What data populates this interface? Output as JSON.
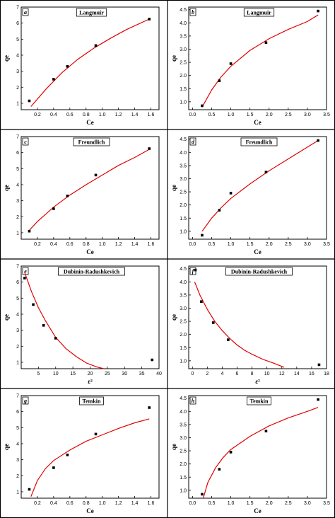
{
  "chart_data": [
    {
      "panel": "a",
      "type": "scatter",
      "title": "Langmuir",
      "xlabel": "Ce",
      "ylabel": "qe",
      "xlim": [
        0.0,
        1.7
      ],
      "ylim": [
        0.6,
        7.0
      ],
      "xticks": [
        0.2,
        0.4,
        0.6,
        0.8,
        1.0,
        1.2,
        1.4,
        1.6
      ],
      "yticks": [
        1,
        2,
        3,
        4,
        5,
        6,
        7
      ],
      "points": [
        [
          0.1,
          1.15
        ],
        [
          0.4,
          2.5
        ],
        [
          0.57,
          3.3
        ],
        [
          0.92,
          4.6
        ],
        [
          1.58,
          6.25
        ]
      ],
      "fit": {
        "color": "#e00000",
        "values": [
          [
            0.12,
            0.8
          ],
          [
            0.3,
            1.85
          ],
          [
            0.5,
            2.9
          ],
          [
            0.7,
            3.75
          ],
          [
            0.9,
            4.45
          ],
          [
            1.1,
            5.05
          ],
          [
            1.3,
            5.6
          ],
          [
            1.58,
            6.25
          ]
        ]
      }
    },
    {
      "panel": "b",
      "type": "scatter",
      "title": "Langmuir",
      "xlabel": "Ce",
      "ylabel": "qe",
      "xlim": [
        -0.1,
        3.5
      ],
      "ylim": [
        0.7,
        4.6
      ],
      "xticks": [
        0.0,
        0.5,
        1.0,
        1.5,
        2.0,
        2.5,
        3.0,
        3.5
      ],
      "yticks": [
        1.0,
        1.5,
        2.0,
        2.5,
        3.0,
        3.5,
        4.0,
        4.5
      ],
      "points": [
        [
          0.25,
          0.85
        ],
        [
          0.7,
          1.8
        ],
        [
          1.0,
          2.45
        ],
        [
          1.92,
          3.25
        ],
        [
          3.28,
          4.45
        ]
      ],
      "fit": {
        "color": "#e00000",
        "values": [
          [
            0.25,
            0.8
          ],
          [
            0.5,
            1.45
          ],
          [
            0.75,
            1.95
          ],
          [
            1.0,
            2.35
          ],
          [
            1.5,
            2.95
          ],
          [
            2.0,
            3.4
          ],
          [
            2.5,
            3.75
          ],
          [
            3.0,
            4.05
          ],
          [
            3.28,
            4.3
          ]
        ]
      }
    },
    {
      "panel": "c",
      "type": "scatter",
      "title": "Freundlich",
      "xlabel": "Ce",
      "ylabel": "qe",
      "xlim": [
        0.0,
        1.7
      ],
      "ylim": [
        0.6,
        7.0
      ],
      "xticks": [
        0.2,
        0.4,
        0.6,
        0.8,
        1.0,
        1.2,
        1.4,
        1.6
      ],
      "yticks": [
        1,
        2,
        3,
        4,
        5,
        6,
        7
      ],
      "points": [
        [
          0.1,
          1.1
        ],
        [
          0.4,
          2.5
        ],
        [
          0.57,
          3.3
        ],
        [
          0.92,
          4.6
        ],
        [
          1.58,
          6.25
        ]
      ],
      "fit": {
        "color": "#e00000",
        "values": [
          [
            0.1,
            1.15
          ],
          [
            0.2,
            1.7
          ],
          [
            0.4,
            2.6
          ],
          [
            0.6,
            3.35
          ],
          [
            0.8,
            4.0
          ],
          [
            1.0,
            4.6
          ],
          [
            1.2,
            5.2
          ],
          [
            1.4,
            5.7
          ],
          [
            1.58,
            6.2
          ]
        ]
      }
    },
    {
      "panel": "d",
      "type": "scatter",
      "title": "Freundlich",
      "xlabel": "Ce",
      "ylabel": "qe",
      "xlim": [
        -0.1,
        3.5
      ],
      "ylim": [
        0.7,
        4.6
      ],
      "xticks": [
        0.0,
        0.5,
        1.0,
        1.5,
        2.0,
        2.5,
        3.0,
        3.5
      ],
      "yticks": [
        1.0,
        1.5,
        2.0,
        2.5,
        3.0,
        3.5,
        4.0,
        4.5
      ],
      "points": [
        [
          0.25,
          0.85
        ],
        [
          0.7,
          1.8
        ],
        [
          1.0,
          2.45
        ],
        [
          1.92,
          3.25
        ],
        [
          3.28,
          4.45
        ]
      ],
      "fit": {
        "color": "#e00000",
        "values": [
          [
            0.25,
            1.0
          ],
          [
            0.5,
            1.5
          ],
          [
            0.75,
            1.9
          ],
          [
            1.0,
            2.25
          ],
          [
            1.5,
            2.8
          ],
          [
            2.0,
            3.3
          ],
          [
            2.5,
            3.75
          ],
          [
            3.0,
            4.2
          ],
          [
            3.28,
            4.45
          ]
        ]
      }
    },
    {
      "panel": "e",
      "type": "scatter",
      "title": "Dubinin-Radushkevich",
      "xlabel": "ε²",
      "ylabel": "qe",
      "xlim": [
        0,
        40
      ],
      "ylim": [
        0.6,
        7.0
      ],
      "xticks": [
        5,
        10,
        15,
        20,
        25,
        30,
        35,
        40
      ],
      "yticks": [
        1,
        2,
        3,
        4,
        5,
        6,
        7
      ],
      "points": [
        [
          1.0,
          6.25
        ],
        [
          3.5,
          4.6
        ],
        [
          6.5,
          3.3
        ],
        [
          10.0,
          2.5
        ],
        [
          38.0,
          1.15
        ]
      ],
      "fit": {
        "color": "#e00000",
        "values": [
          [
            1.0,
            6.6
          ],
          [
            3.0,
            5.4
          ],
          [
            5.0,
            4.4
          ],
          [
            7.0,
            3.6
          ],
          [
            10.0,
            2.55
          ],
          [
            13.0,
            1.85
          ],
          [
            16.0,
            1.35
          ],
          [
            19.0,
            0.95
          ],
          [
            22.0,
            0.7
          ],
          [
            24.0,
            0.6
          ]
        ]
      }
    },
    {
      "panel": "f",
      "type": "scatter",
      "title": "Dubinin-Radushkevich",
      "xlabel": "ε²",
      "ylabel": "qe",
      "xlim": [
        -0.5,
        18
      ],
      "ylim": [
        0.7,
        4.6
      ],
      "xticks": [
        0,
        2,
        4,
        6,
        8,
        10,
        12,
        14,
        16,
        18
      ],
      "yticks": [
        1.0,
        1.5,
        2.0,
        2.5,
        3.0,
        3.5,
        4.0,
        4.5
      ],
      "points": [
        [
          0.4,
          4.45
        ],
        [
          1.2,
          3.25
        ],
        [
          2.8,
          2.45
        ],
        [
          4.8,
          1.8
        ],
        [
          17.0,
          0.85
        ]
      ],
      "fit": {
        "color": "#e00000",
        "values": [
          [
            0.3,
            4.0
          ],
          [
            1.0,
            3.5
          ],
          [
            2.0,
            2.95
          ],
          [
            3.0,
            2.5
          ],
          [
            4.0,
            2.15
          ],
          [
            5.0,
            1.85
          ],
          [
            6.0,
            1.6
          ],
          [
            7.0,
            1.4
          ],
          [
            8.0,
            1.25
          ],
          [
            9.5,
            1.05
          ],
          [
            11.0,
            0.9
          ],
          [
            12.3,
            0.75
          ]
        ]
      }
    },
    {
      "panel": "g",
      "type": "scatter",
      "title": "Temkin",
      "xlabel": "Ce",
      "ylabel": "qe",
      "xlim": [
        0.0,
        1.7
      ],
      "ylim": [
        0.6,
        7.0
      ],
      "xticks": [
        0.2,
        0.4,
        0.6,
        0.8,
        1.0,
        1.2,
        1.4,
        1.6
      ],
      "yticks": [
        1,
        2,
        3,
        4,
        5,
        6,
        7
      ],
      "points": [
        [
          0.1,
          1.15
        ],
        [
          0.4,
          2.5
        ],
        [
          0.57,
          3.3
        ],
        [
          0.92,
          4.6
        ],
        [
          1.58,
          6.25
        ]
      ],
      "fit": {
        "color": "#e00000",
        "values": [
          [
            0.12,
            0.7
          ],
          [
            0.2,
            1.7
          ],
          [
            0.3,
            2.45
          ],
          [
            0.4,
            2.95
          ],
          [
            0.6,
            3.6
          ],
          [
            0.8,
            4.15
          ],
          [
            1.0,
            4.55
          ],
          [
            1.2,
            4.95
          ],
          [
            1.4,
            5.3
          ],
          [
            1.58,
            5.55
          ]
        ]
      }
    },
    {
      "panel": "h",
      "type": "scatter",
      "title": "Temkin",
      "xlabel": "Ce",
      "ylabel": "qe",
      "xlim": [
        -0.1,
        3.5
      ],
      "ylim": [
        0.7,
        4.6
      ],
      "xticks": [
        0.0,
        0.5,
        1.0,
        1.5,
        2.0,
        2.5,
        3.0,
        3.5
      ],
      "yticks": [
        1.0,
        1.5,
        2.0,
        2.5,
        3.0,
        3.5,
        4.0,
        4.5
      ],
      "points": [
        [
          0.25,
          0.85
        ],
        [
          0.7,
          1.8
        ],
        [
          1.0,
          2.45
        ],
        [
          1.92,
          3.25
        ],
        [
          3.28,
          4.45
        ]
      ],
      "fit": {
        "color": "#e00000",
        "values": [
          [
            0.28,
            0.7
          ],
          [
            0.4,
            1.3
          ],
          [
            0.6,
            1.85
          ],
          [
            0.8,
            2.25
          ],
          [
            1.0,
            2.55
          ],
          [
            1.5,
            3.05
          ],
          [
            2.0,
            3.45
          ],
          [
            2.5,
            3.75
          ],
          [
            3.0,
            4.0
          ],
          [
            3.28,
            4.15
          ]
        ]
      }
    }
  ]
}
